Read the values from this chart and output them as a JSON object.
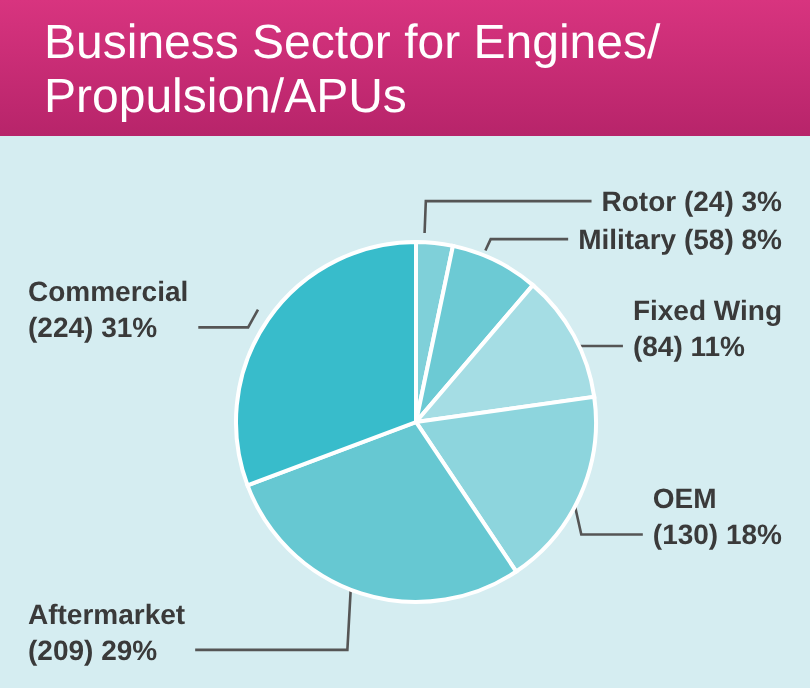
{
  "chart_data": {
    "type": "pie",
    "title": "Business Sector for Engines/\nPropulsion/APUs",
    "categories": [
      "Rotor",
      "Military",
      "Fixed Wing",
      "OEM",
      "Aftermarket",
      "Commercial"
    ],
    "values": [
      24,
      58,
      84,
      130,
      209,
      224
    ],
    "value_labels": [
      "(24) 3%",
      "(58) 8%",
      "(84) 11%",
      "(130) 18%",
      "(209) 29%",
      "(224) 31%"
    ],
    "colors": [
      "#7fd0d9",
      "#6ccad4",
      "#a5dde4",
      "#8dd5dd",
      "#66c8d2",
      "#38bccb"
    ],
    "legend": false
  }
}
